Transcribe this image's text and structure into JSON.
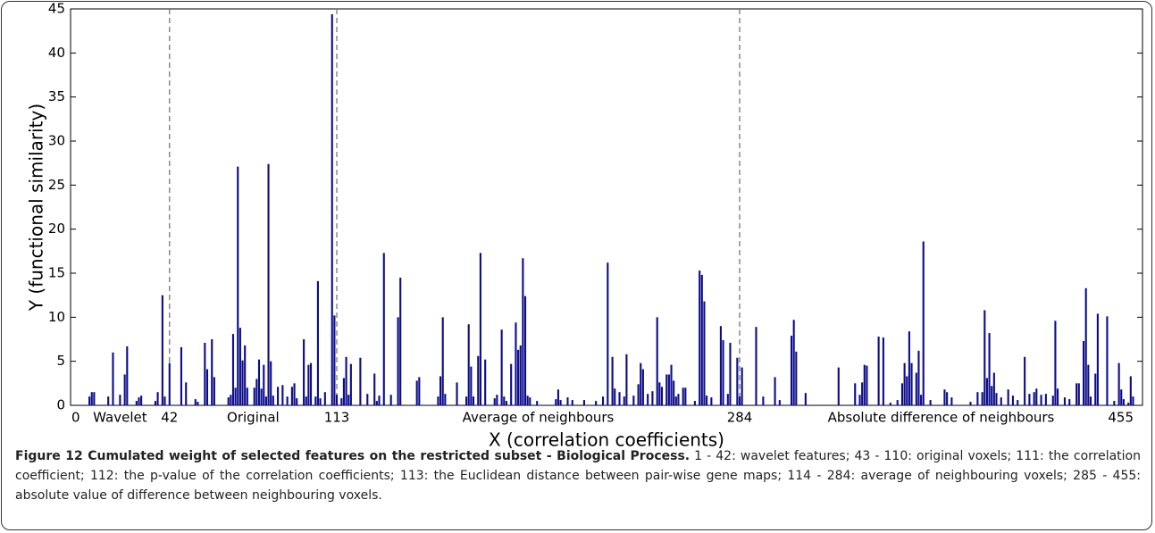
{
  "chart_data": {
    "type": "bar",
    "xlabel": "X (correlation coefficients)",
    "ylabel": "Y (functional similarity)",
    "annotations": [
      "Wavelet",
      "Original",
      "Average of neighbours",
      "Absolute difference of neighbours"
    ],
    "xlim": [
      0,
      455
    ],
    "ylim": [
      0,
      45
    ],
    "xticks": [
      0,
      42,
      113,
      284,
      455
    ],
    "yticks": [
      0,
      5,
      10,
      15,
      20,
      25,
      30,
      35,
      40,
      45
    ],
    "color": "#0c0c8a",
    "x": [
      8,
      9,
      10,
      16,
      18,
      21,
      23,
      24,
      28,
      29,
      30,
      36,
      37,
      39,
      40,
      42,
      47,
      49,
      53,
      54,
      57,
      58,
      60,
      61,
      67,
      68,
      69,
      70,
      71,
      72,
      73,
      74,
      75,
      78,
      79,
      80,
      81,
      82,
      83,
      84,
      85,
      86,
      88,
      90,
      92,
      94,
      95,
      96,
      99,
      100,
      101,
      102,
      104,
      105,
      106,
      108,
      111,
      112,
      113,
      115,
      116,
      117,
      118,
      119,
      123,
      126,
      129,
      130,
      131,
      133,
      136,
      139,
      140,
      147,
      148,
      156,
      157,
      158,
      159,
      164,
      168,
      169,
      170,
      171,
      173,
      174,
      176,
      180,
      181,
      183,
      184,
      185,
      187,
      189,
      190,
      191,
      192,
      193,
      194,
      195,
      198,
      206,
      207,
      208,
      211,
      213,
      218,
      223,
      226,
      228,
      230,
      231,
      233,
      235,
      236,
      239,
      241,
      242,
      243,
      245,
      247,
      249,
      250,
      251,
      253,
      254,
      255,
      256,
      257,
      258,
      260,
      261,
      265,
      267,
      268,
      269,
      270,
      272,
      276,
      277,
      279,
      280,
      283,
      284,
      285,
      291,
      294,
      299,
      301,
      306,
      307,
      308,
      312,
      326,
      333,
      335,
      336,
      337,
      338,
      343,
      345,
      348,
      351,
      353,
      354,
      355,
      356,
      357,
      359,
      360,
      361,
      362,
      365,
      371,
      372,
      374,
      382,
      385,
      387,
      388,
      389,
      390,
      391,
      392,
      393,
      395,
      398,
      400,
      402,
      405,
      407,
      409,
      410,
      412,
      414,
      417,
      418,
      419,
      422,
      424,
      427,
      428,
      430,
      431,
      432,
      433,
      435,
      436,
      440,
      443,
      445,
      446,
      447,
      449,
      450,
      451
    ],
    "values": [
      1.0,
      1.5,
      1.5,
      1.0,
      6.0,
      1.2,
      3.5,
      6.7,
      0.5,
      0.9,
      1.1,
      0.5,
      1.5,
      12.5,
      1.0,
      4.8,
      6.6,
      2.6,
      0.7,
      0.4,
      7.1,
      4.1,
      7.5,
      3.2,
      0.9,
      1.2,
      8.1,
      2.0,
      27.1,
      8.8,
      5.1,
      6.8,
      2.0,
      2.0,
      3.0,
      5.2,
      1.9,
      4.6,
      1.0,
      27.4,
      5.0,
      1.1,
      2.1,
      2.3,
      1.0,
      2.1,
      2.5,
      0.8,
      7.5,
      1.0,
      4.6,
      4.8,
      1.0,
      14.1,
      0.8,
      1.5,
      44.4,
      10.2,
      1.2,
      0.8,
      3.1,
      5.5,
      1.2,
      4.7,
      5.4,
      1.3,
      3.6,
      0.5,
      1.1,
      17.3,
      1.2,
      10.0,
      14.5,
      2.8,
      3.2,
      1.0,
      3.3,
      10.0,
      1.3,
      2.6,
      1.0,
      9.2,
      4.4,
      1.0,
      5.6,
      17.3,
      5.2,
      0.8,
      1.2,
      8.6,
      1.0,
      0.5,
      4.7,
      9.4,
      6.3,
      6.8,
      16.7,
      12.4,
      1.1,
      0.9,
      0.5,
      0.7,
      1.8,
      0.6,
      0.9,
      0.6,
      0.6,
      0.5,
      1.0,
      16.2,
      5.5,
      1.9,
      1.5,
      1.0,
      5.8,
      1.1,
      2.4,
      4.8,
      4.1,
      1.3,
      1.6,
      10.0,
      2.6,
      2.1,
      3.5,
      3.5,
      4.6,
      2.8,
      1.0,
      1.3,
      2.0,
      2.0,
      0.5,
      15.3,
      14.8,
      11.8,
      1.1,
      0.9,
      9.0,
      7.4,
      1.3,
      7.1,
      5.4,
      1.0,
      4.3,
      8.9,
      1.0,
      3.2,
      0.6,
      7.9,
      9.7,
      6.1,
      1.4,
      4.3,
      2.5,
      1.2,
      2.6,
      4.6,
      4.5,
      7.8,
      7.7,
      0.3,
      0.6,
      2.5,
      4.8,
      3.3,
      8.4,
      4.8,
      3.7,
      6.2,
      1.2,
      18.6,
      0.6,
      1.8,
      1.5,
      0.9,
      0.4,
      1.5,
      1.5,
      10.8,
      3.1,
      8.2,
      2.2,
      3.7,
      1.4,
      0.9,
      1.8,
      1.1,
      0.6,
      5.5,
      1.3,
      1.5,
      1.9,
      1.2,
      1.3,
      1.1,
      9.6,
      1.9,
      0.9,
      0.7,
      2.5,
      2.5,
      7.3,
      13.3,
      4.6,
      1.0,
      3.6,
      10.4,
      10.1,
      0.5,
      4.8,
      1.8,
      0.7,
      0.3,
      3.3,
      1.0
    ]
  },
  "caption": {
    "title": "Figure 12 Cumulated weight of selected features on the restricted subset - Biological Process.",
    "text": "1 - 42: wavelet features; 43 - 110: original voxels; 111: the correlation coefficient; 112: the p-value of the correlation coefficients; 113: the Euclidean distance between pair-wise gene maps; 114 - 284: average of neighbouring voxels; 285 - 455: absolute value of difference between neighbouring voxels."
  }
}
